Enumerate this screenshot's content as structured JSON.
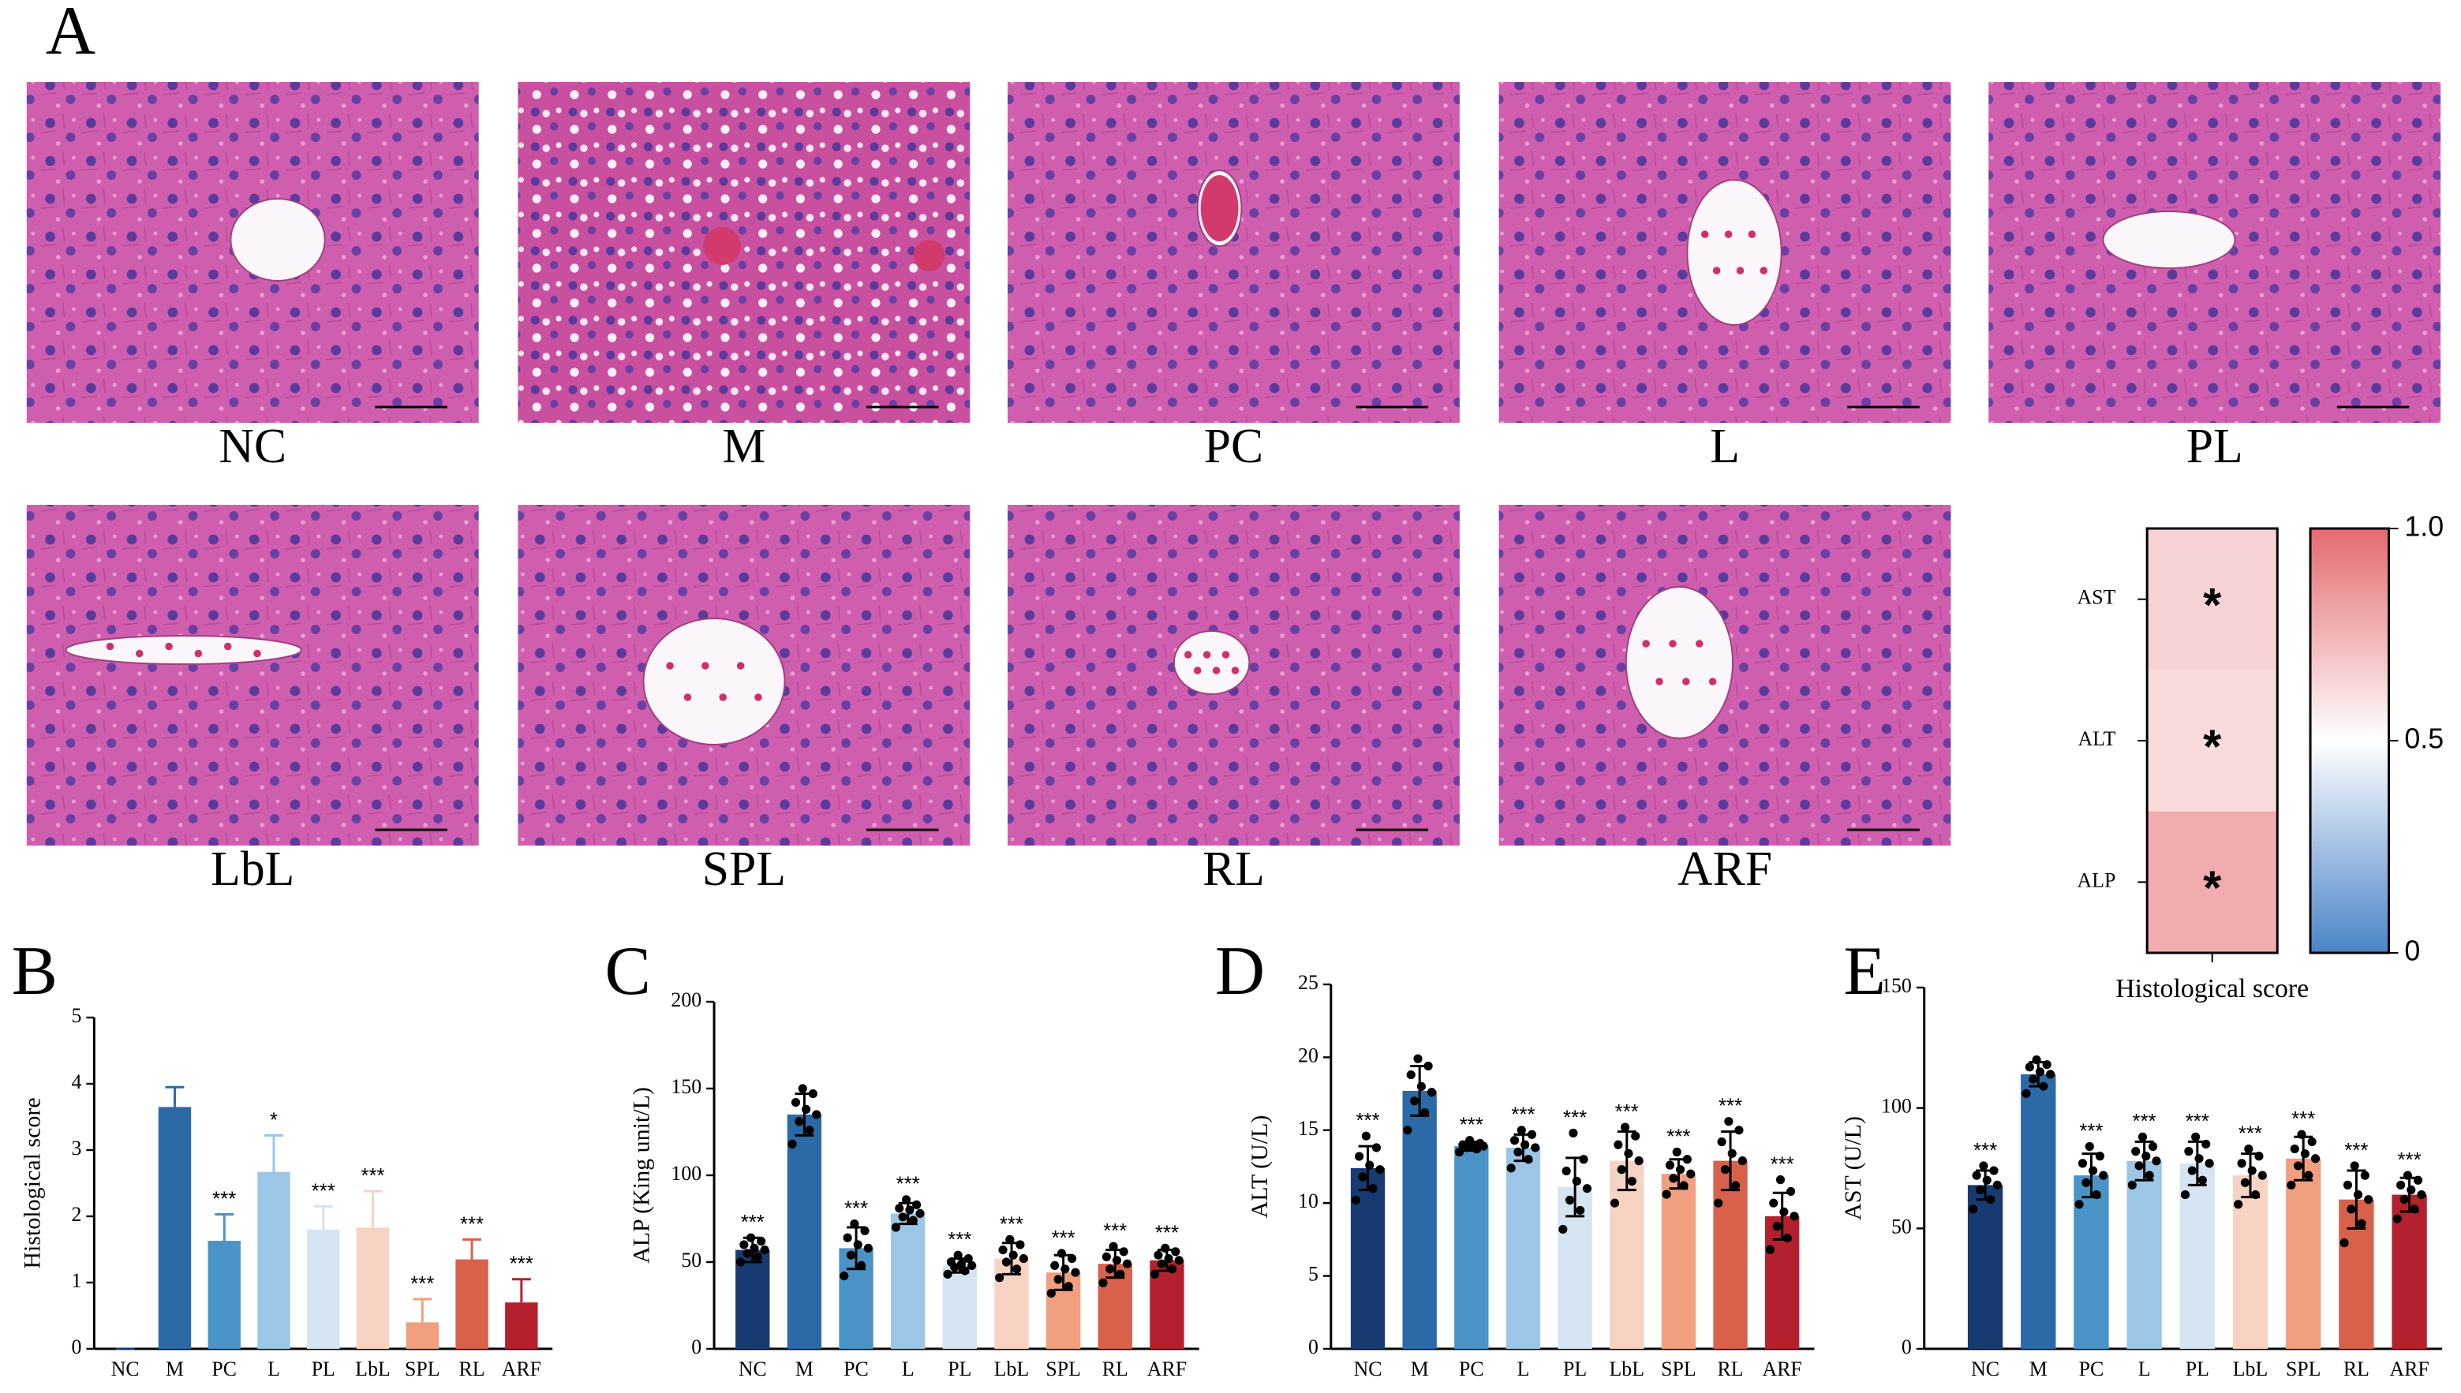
{
  "panel_a": {
    "letter": "A",
    "labels": [
      "NC",
      "M",
      "PC",
      "L",
      "PL",
      "LbL",
      "SPL",
      "RL",
      "ARF"
    ]
  },
  "chart_data": [
    {
      "type": "heatmap",
      "xlabel": "Histological score",
      "rows": [
        "AST",
        "ALT",
        "ALP"
      ],
      "values": [
        0.65,
        0.62,
        0.78
      ],
      "annotations": [
        "*",
        "*",
        "*"
      ],
      "cmap": [
        "#4a84c8",
        "#ffffff",
        "#e46a6e"
      ],
      "clim": [
        0,
        1
      ],
      "cticks": [
        0,
        0.5,
        {
          "value": 1,
          "label": "1.0"
        }
      ]
    },
    {
      "type": "bar",
      "label": "B",
      "ylabel": "Histological score",
      "categories": [
        "NC",
        "M",
        "PC",
        "L",
        "PL",
        "LbL",
        "SPL",
        "RL",
        "ARF"
      ],
      "colors": [
        "#173a70",
        "#2b6aa6",
        "#4a93c6",
        "#9cc6e6",
        "#d5e4f0",
        "#f6d3c3",
        "#f0a07f",
        "#d8614b",
        "#b5202e"
      ],
      "values": [
        0,
        3.65,
        1.63,
        2.67,
        1.8,
        1.83,
        0.4,
        1.35,
        0.7
      ],
      "errors": [
        0,
        0.3,
        0.4,
        0.55,
        0.35,
        0.55,
        0.35,
        0.3,
        0.35
      ],
      "significance": [
        null,
        null,
        "***",
        "*",
        "***",
        "***",
        "***",
        "***",
        "***"
      ],
      "ylim": [
        0,
        5
      ],
      "yticks": [
        0,
        1,
        2,
        3,
        4,
        5
      ]
    },
    {
      "type": "bar",
      "label": "C",
      "ylabel": "ALP (King unit/L)",
      "categories": [
        "NC",
        "M",
        "PC",
        "L",
        "PL",
        "LbL",
        "SPL",
        "RL",
        "ARF"
      ],
      "colors": [
        "#173a70",
        "#2b6aa6",
        "#4a93c6",
        "#9cc6e6",
        "#d5e4f0",
        "#f6d3c3",
        "#f0a07f",
        "#d8614b",
        "#b5202e"
      ],
      "values": [
        57,
        135,
        58,
        78,
        48,
        52,
        44,
        49,
        51
      ],
      "errors": [
        7,
        12,
        12,
        6,
        4,
        9,
        10,
        8,
        6
      ],
      "points": [
        [
          50,
          53,
          55,
          57,
          58,
          60,
          62,
          64
        ],
        [
          118,
          126,
          131,
          135,
          138,
          142,
          147,
          150
        ],
        [
          42,
          48,
          54,
          58,
          60,
          64,
          68,
          72
        ],
        [
          70,
          74,
          76,
          78,
          80,
          81,
          83,
          86
        ],
        [
          43,
          45,
          47,
          48,
          49,
          50,
          52,
          54
        ],
        [
          41,
          46,
          50,
          52,
          54,
          57,
          60,
          63
        ],
        [
          32,
          36,
          40,
          44,
          46,
          48,
          52,
          55
        ],
        [
          38,
          43,
          46,
          49,
          51,
          53,
          56,
          59
        ],
        [
          43,
          46,
          49,
          51,
          52,
          54,
          56,
          58
        ]
      ],
      "significance": [
        "***",
        null,
        "***",
        "***",
        "***",
        "***",
        "***",
        "***",
        "***"
      ],
      "ylim": [
        0,
        200
      ],
      "yticks": [
        0,
        50,
        100,
        150,
        200
      ]
    },
    {
      "type": "bar",
      "label": "D",
      "ylabel": "ALT (U/L)",
      "categories": [
        "NC",
        "M",
        "PC",
        "L",
        "PL",
        "LbL",
        "SPL",
        "RL",
        "ARF"
      ],
      "colors": [
        "#173a70",
        "#2b6aa6",
        "#4a93c6",
        "#9cc6e6",
        "#d5e4f0",
        "#f6d3c3",
        "#f0a07f",
        "#d8614b",
        "#b5202e"
      ],
      "values": [
        12.4,
        17.7,
        13.9,
        13.8,
        11.1,
        12.9,
        12.0,
        12.9,
        9.1
      ],
      "errors": [
        1.5,
        1.7,
        0.3,
        0.9,
        2.0,
        2.0,
        1.0,
        2.0,
        1.6
      ],
      "points": [
        [
          10.2,
          11.0,
          11.8,
          12.3,
          12.6,
          13.2,
          13.8,
          14.6
        ],
        [
          15.0,
          16.2,
          17.0,
          17.6,
          18.0,
          18.8,
          19.4,
          19.9
        ],
        [
          13.5,
          13.7,
          13.8,
          13.9,
          14.0,
          14.0,
          14.1,
          14.3
        ],
        [
          12.4,
          13.0,
          13.5,
          13.8,
          14.0,
          14.3,
          14.7,
          15.0
        ],
        [
          8.2,
          9.5,
          10.2,
          11.0,
          11.5,
          12.2,
          13.0,
          14.8
        ],
        [
          10.0,
          11.5,
          12.3,
          12.9,
          13.4,
          14.0,
          14.6,
          15.2
        ],
        [
          10.6,
          11.2,
          11.7,
          12.0,
          12.3,
          12.6,
          13.0,
          13.5
        ],
        [
          10.0,
          11.2,
          12.3,
          12.9,
          13.4,
          14.2,
          15.0,
          15.6
        ],
        [
          6.8,
          7.6,
          8.4,
          9.1,
          9.4,
          10.0,
          10.8,
          11.6
        ]
      ],
      "significance": [
        "***",
        null,
        "***",
        "***",
        "***",
        "***",
        "***",
        "***",
        "***"
      ],
      "ylim": [
        0,
        25
      ],
      "yticks": [
        0,
        5,
        10,
        15,
        20,
        25
      ]
    },
    {
      "type": "bar",
      "label": "E",
      "ylabel": "AST (U/L)",
      "categories": [
        "NC",
        "M",
        "PC",
        "L",
        "PL",
        "LbL",
        "SPL",
        "RL",
        "ARF"
      ],
      "colors": [
        "#173a70",
        "#2b6aa6",
        "#4a93c6",
        "#9cc6e6",
        "#d5e4f0",
        "#f6d3c3",
        "#f0a07f",
        "#d8614b",
        "#b5202e"
      ],
      "values": [
        68,
        114,
        72,
        78,
        77,
        72,
        79,
        62,
        64
      ],
      "errors": [
        6,
        5,
        9,
        8,
        9,
        9,
        9,
        12,
        7
      ],
      "points": [
        [
          58,
          62,
          66,
          68,
          70,
          72,
          74,
          76
        ],
        [
          106,
          109,
          112,
          114,
          115,
          117,
          118,
          120
        ],
        [
          60,
          64,
          69,
          72,
          74,
          77,
          80,
          84
        ],
        [
          68,
          72,
          76,
          78,
          80,
          82,
          84,
          88
        ],
        [
          64,
          70,
          74,
          77,
          79,
          82,
          85,
          88
        ],
        [
          60,
          64,
          69,
          72,
          74,
          77,
          80,
          83
        ],
        [
          68,
          72,
          76,
          79,
          81,
          83,
          86,
          89
        ],
        [
          44,
          52,
          58,
          62,
          64,
          68,
          72,
          76
        ],
        [
          54,
          58,
          62,
          64,
          66,
          68,
          70,
          72
        ]
      ],
      "significance": [
        "***",
        null,
        "***",
        "***",
        "***",
        "***",
        "***",
        "***",
        "***"
      ],
      "ylim": [
        0,
        150
      ],
      "yticks": [
        0,
        50,
        100,
        150
      ]
    }
  ]
}
